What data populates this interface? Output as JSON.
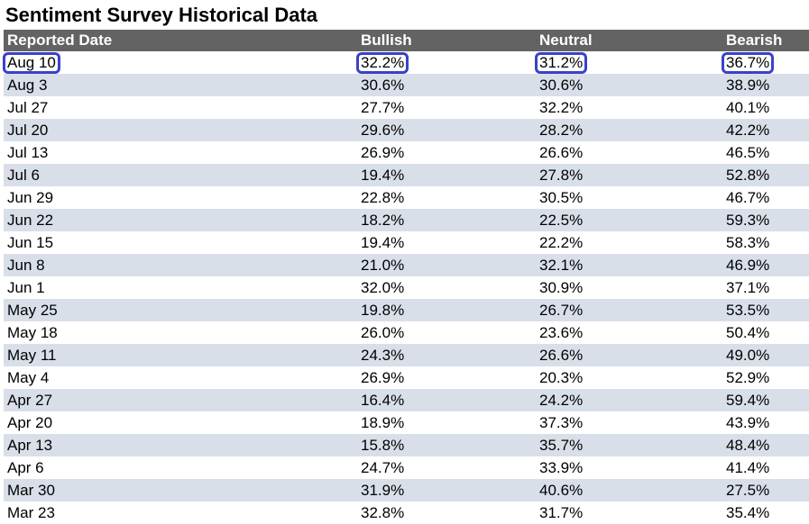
{
  "title": "Sentiment Survey Historical Data",
  "colors": {
    "header_bg": "#636363",
    "row_alt_bg": "#d9dfe9",
    "highlight": "#3a42c8"
  },
  "table": {
    "headers": [
      "Reported Date",
      "Bullish",
      "Neutral",
      "Bearish"
    ],
    "rows": [
      [
        "Aug 10",
        "32.2%",
        "31.2%",
        "36.7%"
      ],
      [
        "Aug 3",
        "30.6%",
        "30.6%",
        "38.9%"
      ],
      [
        "Jul 27",
        "27.7%",
        "32.2%",
        "40.1%"
      ],
      [
        "Jul 20",
        "29.6%",
        "28.2%",
        "42.2%"
      ],
      [
        "Jul 13",
        "26.9%",
        "26.6%",
        "46.5%"
      ],
      [
        "Jul 6",
        "19.4%",
        "27.8%",
        "52.8%"
      ],
      [
        "Jun 29",
        "22.8%",
        "30.5%",
        "46.7%"
      ],
      [
        "Jun 22",
        "18.2%",
        "22.5%",
        "59.3%"
      ],
      [
        "Jun 15",
        "19.4%",
        "22.2%",
        "58.3%"
      ],
      [
        "Jun 8",
        "21.0%",
        "32.1%",
        "46.9%"
      ],
      [
        "Jun 1",
        "32.0%",
        "30.9%",
        "37.1%"
      ],
      [
        "May 25",
        "19.8%",
        "26.7%",
        "53.5%"
      ],
      [
        "May 18",
        "26.0%",
        "23.6%",
        "50.4%"
      ],
      [
        "May 11",
        "24.3%",
        "26.6%",
        "49.0%"
      ],
      [
        "May 4",
        "26.9%",
        "20.3%",
        "52.9%"
      ],
      [
        "Apr 27",
        "16.4%",
        "24.2%",
        "59.4%"
      ],
      [
        "Apr 20",
        "18.9%",
        "37.3%",
        "43.9%"
      ],
      [
        "Apr 13",
        "15.8%",
        "35.7%",
        "48.4%"
      ],
      [
        "Apr 6",
        "24.7%",
        "33.9%",
        "41.4%"
      ],
      [
        "Mar 30",
        "31.9%",
        "40.6%",
        "27.5%"
      ],
      [
        "Mar 23",
        "32.8%",
        "31.7%",
        "35.4%"
      ]
    ]
  }
}
